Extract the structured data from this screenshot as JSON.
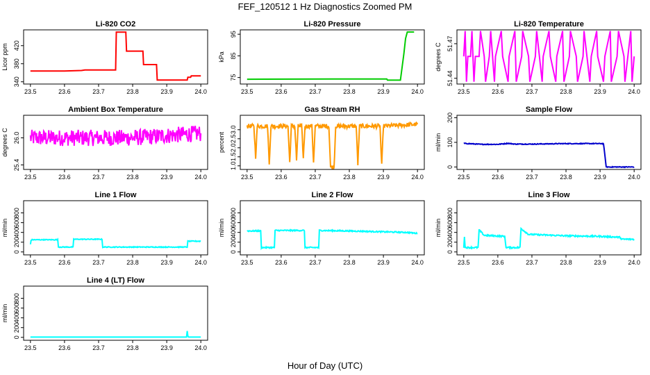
{
  "figure": {
    "title": "FEF_120512  1 Hz Diagnostics Zoomed PM",
    "xlabel": "Hour of Day (UTC)"
  },
  "chart_data": [
    {
      "type": "line",
      "title": "Li-820 CO2",
      "ylabel": "Licor ppm",
      "xlim": [
        23.48,
        24.02
      ],
      "ylim": [
        335,
        455
      ],
      "xticks": [
        "23.5",
        "23.6",
        "23.7",
        "23.8",
        "23.9",
        "24.0"
      ],
      "yticks": [
        340,
        380,
        420
      ],
      "color": "#ff0000",
      "noise": 0,
      "series": [
        {
          "name": "CO2",
          "x": [
            23.5,
            23.6,
            23.65,
            23.66,
            23.75,
            23.752,
            23.78,
            23.782,
            23.83,
            23.832,
            23.87,
            23.872,
            23.96,
            23.962,
            23.97,
            23.972,
            24.0
          ],
          "y": [
            364,
            364,
            365,
            366,
            366,
            450,
            450,
            408,
            408,
            378,
            378,
            344,
            344,
            350,
            350,
            353,
            353
          ]
        }
      ]
    },
    {
      "type": "line",
      "title": "Li-820 Pressure",
      "ylabel": "kPa",
      "xlim": [
        23.48,
        24.02
      ],
      "ylim": [
        72,
        97
      ],
      "xticks": [
        "23.5",
        "23.6",
        "23.7",
        "23.8",
        "23.9",
        "24.0"
      ],
      "yticks": [
        75,
        85,
        95
      ],
      "color": "#00cc00",
      "noise": 0,
      "series": [
        {
          "name": "Pressure",
          "x": [
            23.5,
            23.75,
            23.91,
            23.912,
            23.95,
            23.96,
            23.965,
            23.97,
            23.99
          ],
          "y": [
            74.2,
            74.3,
            74.3,
            73.8,
            73.8,
            86,
            93,
            96,
            96
          ]
        }
      ]
    },
    {
      "type": "line",
      "title": "Li-820 Temperature",
      "ylabel": "degrees C",
      "xlim": [
        23.48,
        24.02
      ],
      "ylim": [
        51.435,
        51.482
      ],
      "xticks": [
        "23.5",
        "23.6",
        "23.7",
        "23.8",
        "23.9",
        "24.0"
      ],
      "yticks": [
        51.44,
        51.47
      ],
      "ytick_labels": [
        "51.44",
        "51.47"
      ],
      "color": "#ff00ff",
      "noise": 0,
      "series": [
        {
          "name": "Temperature",
          "x": [
            23.5,
            23.504,
            23.508,
            23.512,
            23.52,
            23.524,
            23.53,
            23.534,
            23.545,
            23.549,
            23.56,
            23.564,
            23.575,
            23.579,
            23.59,
            23.593,
            23.61,
            23.614,
            23.63,
            23.633,
            23.65,
            23.654,
            23.67,
            23.673,
            23.69,
            23.694,
            23.71,
            23.714,
            23.73,
            23.733,
            23.75,
            23.754,
            23.77,
            23.773,
            23.79,
            23.794,
            23.81,
            23.813,
            23.83,
            23.834,
            23.85,
            23.853,
            23.87,
            23.874,
            23.89,
            23.893,
            23.91,
            23.914,
            23.93,
            23.933,
            23.95,
            23.954,
            23.97,
            23.973,
            23.99,
            23.994,
            24.0
          ],
          "y": [
            51.459,
            51.481,
            51.437,
            51.459,
            51.459,
            51.481,
            51.437,
            51.459,
            51.459,
            51.481,
            51.459,
            51.437,
            51.459,
            51.481,
            51.437,
            51.459,
            51.481,
            51.459,
            51.437,
            51.459,
            51.481,
            51.437,
            51.459,
            51.481,
            51.459,
            51.437,
            51.459,
            51.481,
            51.437,
            51.459,
            51.481,
            51.459,
            51.437,
            51.459,
            51.481,
            51.437,
            51.459,
            51.481,
            51.459,
            51.437,
            51.459,
            51.481,
            51.437,
            51.459,
            51.481,
            51.459,
            51.437,
            51.459,
            51.481,
            51.437,
            51.459,
            51.481,
            51.459,
            51.437,
            51.481,
            51.437,
            51.459
          ]
        }
      ]
    },
    {
      "type": "line",
      "title": "Ambient Box Temperature",
      "ylabel": "degrees C",
      "xlim": [
        23.48,
        24.02
      ],
      "ylim": [
        25.3,
        26.5
      ],
      "xticks": [
        "23.5",
        "23.6",
        "23.7",
        "23.8",
        "23.9",
        "24.0"
      ],
      "yticks": [
        25.4,
        26.0
      ],
      "ytick_labels": [
        "25.4",
        "26.0"
      ],
      "color": "#ff00ff",
      "noise": 0.18,
      "series": [
        {
          "name": "Box Temp",
          "x": [
            23.5,
            23.6,
            23.7,
            23.8,
            23.9,
            24.0
          ],
          "y": [
            26.0,
            26.0,
            26.0,
            26.0,
            26.05,
            26.1
          ]
        }
      ]
    },
    {
      "type": "line",
      "title": "Gas Stream RH",
      "ylabel": "percent",
      "xlim": [
        23.48,
        24.02
      ],
      "ylim": [
        0.8,
        3.8
      ],
      "xticks": [
        "23.5",
        "23.6",
        "23.7",
        "23.8",
        "23.9",
        "24.0"
      ],
      "yticks": [
        1.0,
        1.5,
        2.0,
        2.5,
        3.0
      ],
      "ytick_labels": [
        "1.0",
        "1.5",
        "2.0",
        "2.5",
        "3.0"
      ],
      "color": "#ff9900",
      "noise": 0.12,
      "series": [
        {
          "name": "RH",
          "x": [
            23.5,
            23.52,
            23.525,
            23.53,
            23.56,
            23.565,
            23.57,
            23.62,
            23.625,
            23.63,
            23.64,
            23.645,
            23.65,
            23.66,
            23.665,
            23.67,
            23.69,
            23.695,
            23.7,
            23.74,
            23.745,
            23.75,
            23.755,
            23.76,
            23.82,
            23.825,
            23.83,
            23.89,
            23.895,
            23.9,
            24.0
          ],
          "y": [
            3.2,
            3.2,
            1.5,
            3.2,
            3.2,
            1.1,
            3.2,
            3.2,
            1.2,
            3.2,
            3.2,
            1.3,
            3.2,
            3.2,
            1.4,
            3.2,
            3.2,
            1.2,
            3.2,
            3.2,
            0.9,
            0.95,
            0.9,
            3.2,
            3.2,
            1.1,
            3.2,
            3.2,
            1.0,
            3.2,
            3.3
          ]
        }
      ]
    },
    {
      "type": "line",
      "title": "Sample Flow",
      "ylabel": "ml/min",
      "xlim": [
        23.48,
        24.02
      ],
      "ylim": [
        -10,
        210
      ],
      "xticks": [
        "23.5",
        "23.6",
        "23.7",
        "23.8",
        "23.9",
        "24.0"
      ],
      "yticks": [
        0,
        100,
        200
      ],
      "color": "#0000cc",
      "noise": 1.5,
      "series": [
        {
          "name": "Sample Flow",
          "x": [
            23.5,
            23.55,
            23.6,
            23.63,
            23.65,
            23.7,
            23.8,
            23.91,
            23.918,
            24.0
          ],
          "y": [
            96,
            92,
            92,
            96,
            93,
            93,
            95,
            95,
            0,
            0
          ]
        }
      ]
    },
    {
      "type": "line",
      "title": "Line 1 Flow",
      "ylabel": "ml/min",
      "xlim": [
        23.48,
        24.02
      ],
      "ylim": [
        -60,
        1050
      ],
      "xticks": [
        "23.5",
        "23.6",
        "23.7",
        "23.8",
        "23.9",
        "24.0"
      ],
      "yticks": [
        0,
        200,
        400,
        600,
        800
      ],
      "color": "#00ffff",
      "noise": 8,
      "series": [
        {
          "name": "Line 1",
          "x": [
            23.5,
            23.502,
            23.505,
            23.58,
            23.582,
            23.625,
            23.627,
            23.71,
            23.712,
            23.96,
            23.962,
            24.0
          ],
          "y": [
            150,
            240,
            250,
            250,
            100,
            100,
            260,
            260,
            100,
            100,
            220,
            220
          ]
        }
      ]
    },
    {
      "type": "line",
      "title": "Line 2 Flow",
      "ylabel": "ml/min",
      "xlim": [
        23.48,
        24.02
      ],
      "ylim": [
        -60,
        1050
      ],
      "xticks": [
        "23.5",
        "23.6",
        "23.7",
        "23.8",
        "23.9",
        "24.0"
      ],
      "yticks": [
        0,
        200,
        400,
        600,
        800
      ],
      "color": "#00ffff",
      "noise": 12,
      "series": [
        {
          "name": "Line 2",
          "x": [
            23.5,
            23.54,
            23.542,
            23.58,
            23.582,
            23.668,
            23.67,
            23.71,
            23.712,
            23.8,
            23.97,
            24.0
          ],
          "y": [
            430,
            430,
            90,
            90,
            440,
            440,
            90,
            90,
            440,
            430,
            400,
            380
          ]
        }
      ]
    },
    {
      "type": "line",
      "title": "Line 3 Flow",
      "ylabel": "ml/min",
      "xlim": [
        23.48,
        24.02
      ],
      "ylim": [
        -60,
        1050
      ],
      "xticks": [
        "23.5",
        "23.6",
        "23.7",
        "23.8",
        "23.9",
        "24.0"
      ],
      "yticks": [
        0,
        200,
        400,
        600,
        800
      ],
      "color": "#00ffff",
      "noise": 15,
      "series": [
        {
          "name": "Line 3",
          "x": [
            23.5,
            23.502,
            23.504,
            23.542,
            23.545,
            23.56,
            23.62,
            23.624,
            23.626,
            23.665,
            23.668,
            23.69,
            23.8,
            23.9,
            23.96,
            23.962,
            24.0
          ],
          "y": [
            100,
            320,
            90,
            90,
            450,
            340,
            320,
            100,
            90,
            90,
            480,
            360,
            330,
            320,
            300,
            260,
            260
          ]
        }
      ]
    },
    {
      "type": "line",
      "title": "Line 4 (LT) Flow",
      "ylabel": "ml/min",
      "xlim": [
        23.48,
        24.02
      ],
      "ylim": [
        -60,
        1050
      ],
      "xticks": [
        "23.5",
        "23.6",
        "23.7",
        "23.8",
        "23.9",
        "24.0"
      ],
      "yticks": [
        0,
        200,
        400,
        600,
        800
      ],
      "color": "#00ffff",
      "noise": 0,
      "series": [
        {
          "name": "Line 4",
          "x": [
            23.5,
            23.958,
            23.96,
            23.962,
            23.964,
            24.0
          ],
          "y": [
            5,
            5,
            130,
            30,
            5,
            5
          ]
        }
      ]
    }
  ]
}
